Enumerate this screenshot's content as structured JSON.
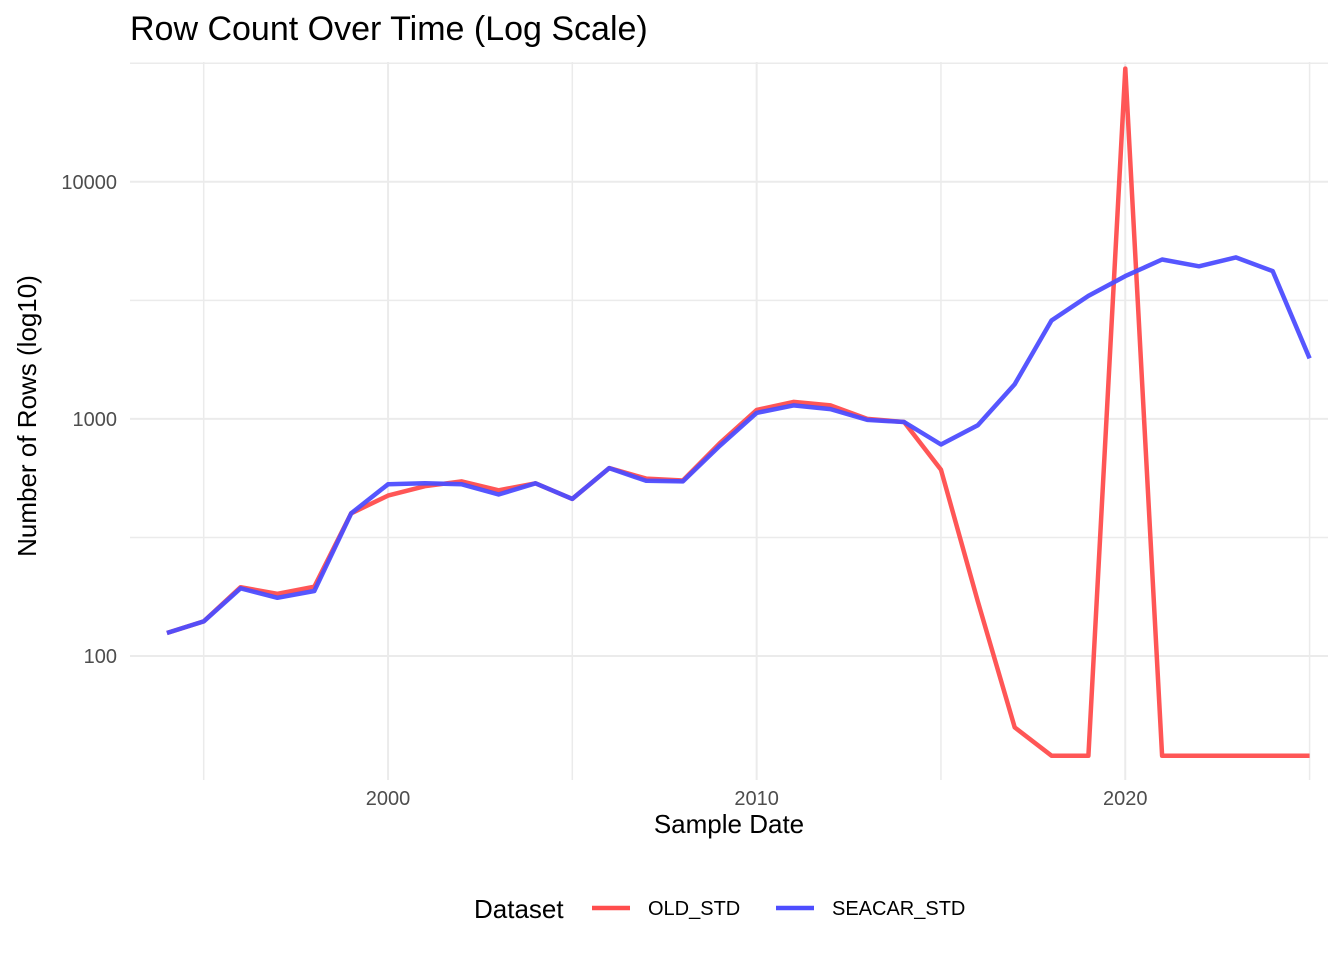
{
  "chart_data": {
    "type": "line",
    "title": "Row Count Over Time (Log Scale)",
    "xlabel": "Sample Date",
    "ylabel": "Number of Rows (log10)",
    "y_scale": "log10",
    "xlim": [
      1993,
      2025.5
    ],
    "ylim": [
      30,
      32000
    ],
    "x_ticks": [
      2000,
      2010,
      2020
    ],
    "x_tick_labels": [
      "2000",
      "2010",
      "2020"
    ],
    "y_ticks": [
      100,
      1000,
      10000
    ],
    "y_tick_labels": [
      "100",
      "1000",
      "10000"
    ],
    "grid": true,
    "legend": {
      "title": "Dataset",
      "position": "bottom"
    },
    "x": [
      1994,
      1995,
      1996,
      1997,
      1998,
      1999,
      2000,
      2001,
      2002,
      2003,
      2004,
      2005,
      2006,
      2007,
      2008,
      2009,
      2010,
      2011,
      2012,
      2013,
      2014,
      2015,
      2016,
      2017,
      2018,
      2019,
      2020,
      2021,
      2022,
      2023,
      2024,
      2025
    ],
    "series": [
      {
        "name": "OLD_STD",
        "color": "#ff4d4d",
        "values": [
          125,
          140,
          195,
          183,
          196,
          400,
          475,
          520,
          545,
          500,
          535,
          460,
          620,
          560,
          550,
          790,
          1090,
          1180,
          1140,
          1000,
          970,
          610,
          170,
          50,
          38,
          38,
          30000,
          38,
          38,
          38,
          38,
          38
        ]
      },
      {
        "name": "SEACAR_STD",
        "color": "#4d4dff",
        "values": [
          125,
          140,
          193,
          176,
          188,
          400,
          530,
          535,
          530,
          480,
          535,
          460,
          620,
          548,
          545,
          770,
          1060,
          1140,
          1100,
          990,
          970,
          780,
          940,
          1400,
          2600,
          3300,
          4000,
          4700,
          4400,
          4800,
          4200,
          1800
        ]
      }
    ]
  }
}
